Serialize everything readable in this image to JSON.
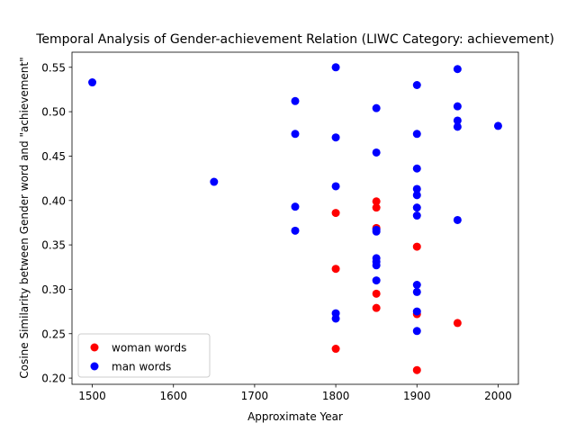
{
  "chart_data": {
    "type": "scatter",
    "title": "Temporal Analysis of Gender-achievement Relation (LIWC Category: achievement)",
    "xlabel": "Approximate Year",
    "ylabel": "Cosine Similarity between Gender word and \"achievement\"",
    "xlim": [
      1475,
      2025
    ],
    "ylim": [
      0.193,
      0.567
    ],
    "xticks": [
      1500,
      1600,
      1700,
      1800,
      1900,
      2000
    ],
    "yticks": [
      0.2,
      0.25,
      0.3,
      0.35,
      0.4,
      0.45,
      0.5,
      0.55
    ],
    "ytick_labels": [
      "0.20",
      "0.25",
      "0.30",
      "0.35",
      "0.40",
      "0.45",
      "0.50",
      "0.55"
    ],
    "grid": false,
    "legend_position": "lower-left",
    "series": [
      {
        "name": "woman words",
        "color": "#ff0000",
        "points": [
          {
            "x": 1800,
            "y": 0.386
          },
          {
            "x": 1800,
            "y": 0.323
          },
          {
            "x": 1800,
            "y": 0.233
          },
          {
            "x": 1850,
            "y": 0.399
          },
          {
            "x": 1850,
            "y": 0.392
          },
          {
            "x": 1850,
            "y": 0.369
          },
          {
            "x": 1850,
            "y": 0.295
          },
          {
            "x": 1850,
            "y": 0.279
          },
          {
            "x": 1900,
            "y": 0.348
          },
          {
            "x": 1900,
            "y": 0.272
          },
          {
            "x": 1900,
            "y": 0.209
          },
          {
            "x": 1950,
            "y": 0.262
          }
        ]
      },
      {
        "name": "man words",
        "color": "#0000ff",
        "points": [
          {
            "x": 1500,
            "y": 0.533
          },
          {
            "x": 1650,
            "y": 0.421
          },
          {
            "x": 1750,
            "y": 0.512
          },
          {
            "x": 1750,
            "y": 0.475
          },
          {
            "x": 1750,
            "y": 0.393
          },
          {
            "x": 1750,
            "y": 0.366
          },
          {
            "x": 1800,
            "y": 0.55
          },
          {
            "x": 1800,
            "y": 0.471
          },
          {
            "x": 1800,
            "y": 0.416
          },
          {
            "x": 1800,
            "y": 0.273
          },
          {
            "x": 1800,
            "y": 0.267
          },
          {
            "x": 1850,
            "y": 0.504
          },
          {
            "x": 1850,
            "y": 0.454
          },
          {
            "x": 1850,
            "y": 0.367
          },
          {
            "x": 1850,
            "y": 0.365
          },
          {
            "x": 1850,
            "y": 0.335
          },
          {
            "x": 1850,
            "y": 0.331
          },
          {
            "x": 1850,
            "y": 0.327
          },
          {
            "x": 1850,
            "y": 0.31
          },
          {
            "x": 1900,
            "y": 0.53
          },
          {
            "x": 1900,
            "y": 0.475
          },
          {
            "x": 1900,
            "y": 0.436
          },
          {
            "x": 1900,
            "y": 0.413
          },
          {
            "x": 1900,
            "y": 0.406
          },
          {
            "x": 1900,
            "y": 0.392
          },
          {
            "x": 1900,
            "y": 0.383
          },
          {
            "x": 1900,
            "y": 0.305
          },
          {
            "x": 1900,
            "y": 0.297
          },
          {
            "x": 1900,
            "y": 0.275
          },
          {
            "x": 1900,
            "y": 0.253
          },
          {
            "x": 1950,
            "y": 0.548
          },
          {
            "x": 1950,
            "y": 0.506
          },
          {
            "x": 1950,
            "y": 0.49
          },
          {
            "x": 1950,
            "y": 0.483
          },
          {
            "x": 1950,
            "y": 0.378
          },
          {
            "x": 2000,
            "y": 0.484
          }
        ]
      }
    ]
  }
}
